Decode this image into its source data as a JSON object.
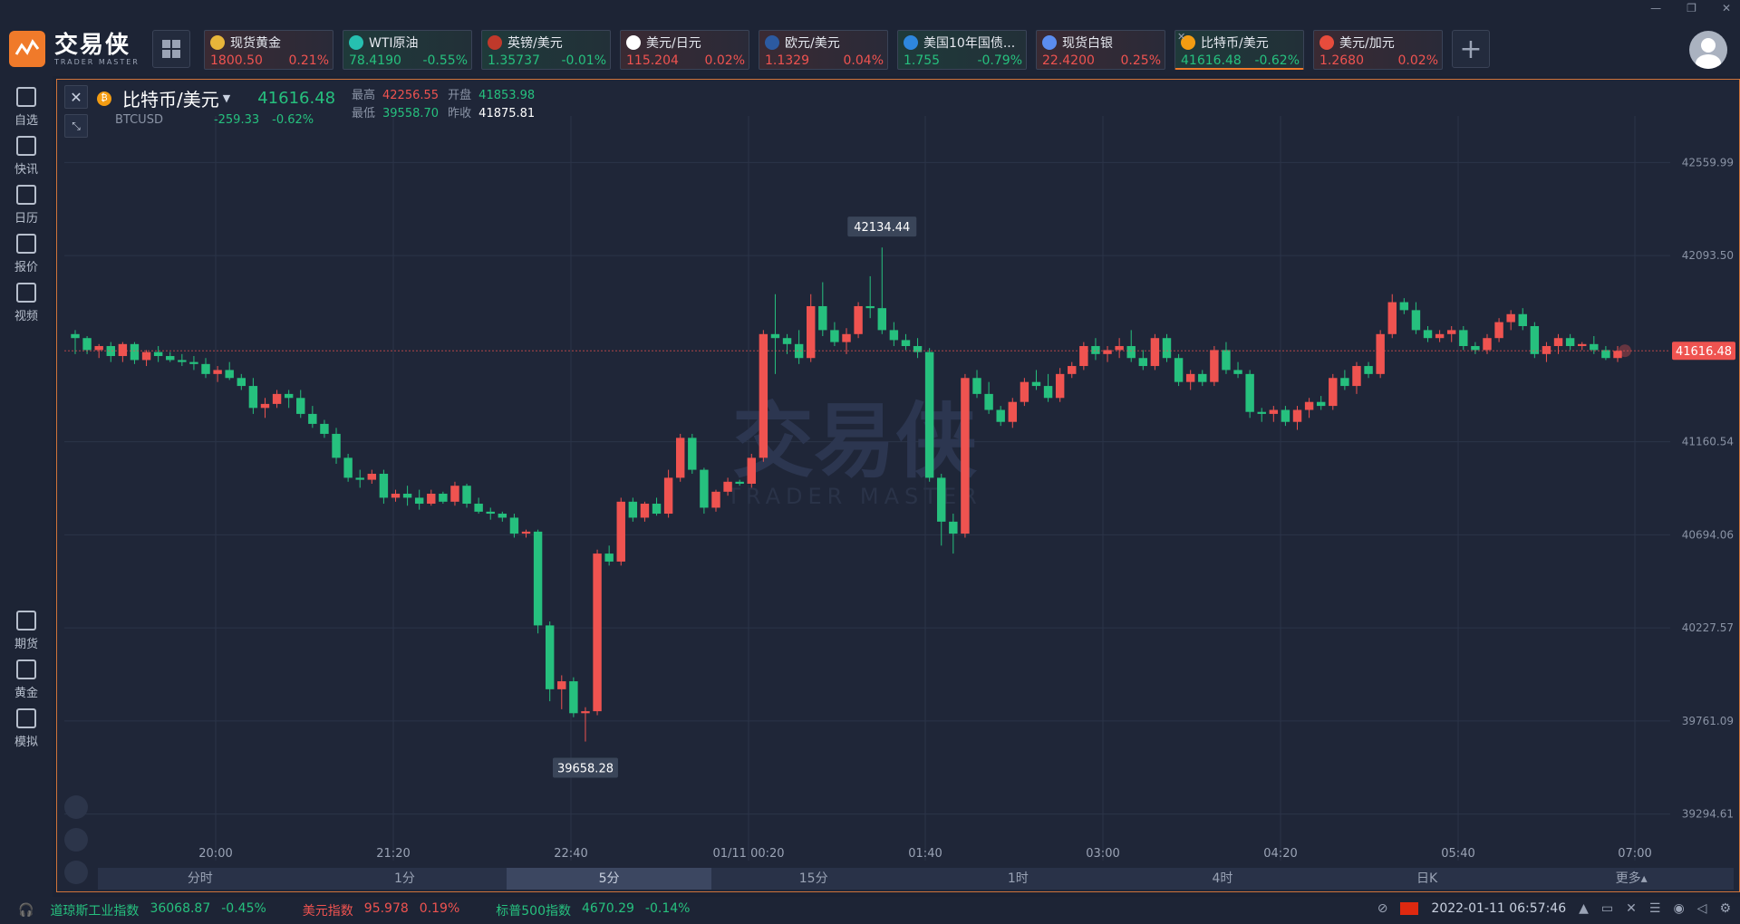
{
  "app": {
    "logo_cn": "交易侠",
    "logo_en": "TRADER MASTER"
  },
  "tabs": [
    {
      "name": "现货黄金",
      "price": "1800.50",
      "change": "0.21%",
      "dir": "up",
      "icon_color": "#e8b53a"
    },
    {
      "name": "WTI原油",
      "price": "78.4190",
      "change": "-0.55%",
      "dir": "down",
      "icon_color": "#26c0b0"
    },
    {
      "name": "英镑/美元",
      "price": "1.35737",
      "change": "-0.01%",
      "dir": "down",
      "icon_color": "#c0392b"
    },
    {
      "name": "美元/日元",
      "price": "115.204",
      "change": "0.02%",
      "dir": "up",
      "icon_color": "#ffffff"
    },
    {
      "name": "欧元/美元",
      "price": "1.1329",
      "change": "0.04%",
      "dir": "up",
      "icon_color": "#2c5aa0"
    },
    {
      "name": "美国10年国债...",
      "price": "1.755",
      "change": "-0.79%",
      "dir": "down",
      "icon_color": "#2e86de"
    },
    {
      "name": "现货白银",
      "price": "22.4200",
      "change": "0.25%",
      "dir": "up",
      "icon_color": "#5b8def"
    },
    {
      "name": "比特币/美元",
      "price": "41616.48",
      "change": "-0.62%",
      "dir": "down",
      "icon_color": "#f39c12",
      "active": true
    },
    {
      "name": "美元/加元",
      "price": "1.2680",
      "change": "0.02%",
      "dir": "up",
      "icon_color": "#e74c3c"
    }
  ],
  "sidebar": [
    {
      "label": "自选",
      "icon": "bookmark-icon"
    },
    {
      "label": "快讯",
      "icon": "news-icon"
    },
    {
      "label": "日历",
      "icon": "calendar-icon"
    },
    {
      "label": "报价",
      "icon": "quote-icon"
    },
    {
      "label": "视频",
      "icon": "video-icon"
    },
    {
      "label": "期货",
      "icon": "futures-icon"
    },
    {
      "label": "黄金",
      "icon": "gold-icon"
    },
    {
      "label": "模拟",
      "icon": "wallet-icon"
    }
  ],
  "symbol": {
    "name": "比特币/美元",
    "code": "BTCUSD",
    "price": "41616.48",
    "change": "-259.33",
    "change_pct": "-0.62%",
    "high_label": "最高",
    "high": "42256.55",
    "open_label": "开盘",
    "open": "41853.98",
    "low_label": "最低",
    "low": "39558.70",
    "prev_label": "昨收",
    "prev": "41875.81"
  },
  "timeframes": [
    "分时",
    "1分",
    "5分",
    "15分",
    "1时",
    "4时",
    "日K",
    "更多▴"
  ],
  "active_timeframe": "5分",
  "chart_data": {
    "type": "candlestick",
    "y_ticks": [
      "42559.99",
      "42093.50",
      "41160.54",
      "40694.06",
      "40227.57",
      "39761.09",
      "39294.61"
    ],
    "x_ticks": [
      "20:00",
      "21:20",
      "22:40",
      "01/11 00:20",
      "01:40",
      "03:00",
      "04:20",
      "05:40",
      "07:00"
    ],
    "ylim": [
      39061.37,
      42793.24
    ],
    "current_price": "41616.48",
    "high_marker": "42134.44",
    "low_marker": "39658.28",
    "up_color": "#ef5350",
    "down_color": "#26c07e",
    "candles": [
      [
        41700,
        41720,
        41600,
        41680
      ],
      [
        41680,
        41690,
        41600,
        41620
      ],
      [
        41620,
        41650,
        41580,
        41640
      ],
      [
        41640,
        41660,
        41560,
        41590
      ],
      [
        41590,
        41660,
        41560,
        41650
      ],
      [
        41650,
        41660,
        41550,
        41570
      ],
      [
        41570,
        41620,
        41540,
        41610
      ],
      [
        41610,
        41640,
        41560,
        41590
      ],
      [
        41590,
        41610,
        41560,
        41570
      ],
      [
        41570,
        41600,
        41540,
        41560
      ],
      [
        41560,
        41590,
        41520,
        41550
      ],
      [
        41550,
        41580,
        41480,
        41500
      ],
      [
        41500,
        41540,
        41460,
        41520
      ],
      [
        41520,
        41560,
        41470,
        41480
      ],
      [
        41480,
        41500,
        41420,
        41440
      ],
      [
        41440,
        41480,
        41300,
        41330
      ],
      [
        41330,
        41380,
        41280,
        41350
      ],
      [
        41350,
        41420,
        41330,
        41400
      ],
      [
        41400,
        41420,
        41330,
        41380
      ],
      [
        41380,
        41420,
        41280,
        41300
      ],
      [
        41300,
        41340,
        41230,
        41250
      ],
      [
        41250,
        41270,
        41180,
        41200
      ],
      [
        41200,
        41230,
        41050,
        41080
      ],
      [
        41080,
        41100,
        40960,
        40980
      ],
      [
        40980,
        41020,
        40930,
        40970
      ],
      [
        40970,
        41020,
        40950,
        41000
      ],
      [
        41000,
        41020,
        40850,
        40880
      ],
      [
        40880,
        40920,
        40860,
        40900
      ],
      [
        40900,
        40940,
        40840,
        40880
      ],
      [
        40880,
        40920,
        40820,
        40850
      ],
      [
        40850,
        40920,
        40840,
        40900
      ],
      [
        40900,
        40910,
        40850,
        40860
      ],
      [
        40860,
        40960,
        40840,
        40940
      ],
      [
        40940,
        40950,
        40830,
        40850
      ],
      [
        40850,
        40880,
        40800,
        40810
      ],
      [
        40810,
        40830,
        40770,
        40800
      ],
      [
        40800,
        40810,
        40760,
        40780
      ],
      [
        40780,
        40800,
        40680,
        40700
      ],
      [
        40700,
        40720,
        40680,
        40710
      ],
      [
        40710,
        40720,
        40200,
        40240
      ],
      [
        40240,
        40260,
        39860,
        39920
      ],
      [
        39920,
        39990,
        39820,
        39960
      ],
      [
        39960,
        39980,
        39780,
        39800
      ],
      [
        39800,
        39830,
        39658,
        39810
      ],
      [
        39810,
        40620,
        39790,
        40600
      ],
      [
        40600,
        40640,
        40540,
        40560
      ],
      [
        40560,
        40880,
        40540,
        40860
      ],
      [
        40860,
        40880,
        40760,
        40780
      ],
      [
        40780,
        40860,
        40760,
        40850
      ],
      [
        40850,
        40880,
        40790,
        40800
      ],
      [
        40800,
        41020,
        40780,
        40980
      ],
      [
        40980,
        41200,
        40960,
        41180
      ],
      [
        41180,
        41200,
        41000,
        41020
      ],
      [
        41020,
        41030,
        40800,
        40830
      ],
      [
        40830,
        40920,
        40810,
        40910
      ],
      [
        40910,
        40980,
        40890,
        40960
      ],
      [
        40960,
        40970,
        40940,
        40950
      ],
      [
        40950,
        41100,
        40930,
        41080
      ],
      [
        41080,
        41720,
        41060,
        41700
      ],
      [
        41700,
        41900,
        41500,
        41680
      ],
      [
        41680,
        41700,
        41600,
        41650
      ],
      [
        41650,
        41720,
        41550,
        41580
      ],
      [
        41580,
        41900,
        41560,
        41840
      ],
      [
        41840,
        41960,
        41690,
        41720
      ],
      [
        41720,
        41760,
        41640,
        41660
      ],
      [
        41660,
        41730,
        41600,
        41700
      ],
      [
        41700,
        41860,
        41680,
        41840
      ],
      [
        41840,
        41990,
        41780,
        41830
      ],
      [
        41830,
        42134,
        41700,
        41720
      ],
      [
        41720,
        41760,
        41640,
        41670
      ],
      [
        41670,
        41700,
        41620,
        41640
      ],
      [
        41640,
        41680,
        41580,
        41610
      ],
      [
        41610,
        41630,
        40960,
        40980
      ],
      [
        40980,
        41000,
        40640,
        40760
      ],
      [
        40760,
        40800,
        40600,
        40700
      ],
      [
        40700,
        41500,
        40680,
        41480
      ],
      [
        41480,
        41520,
        41380,
        41400
      ],
      [
        41400,
        41460,
        41300,
        41320
      ],
      [
        41320,
        41340,
        41240,
        41260
      ],
      [
        41260,
        41380,
        41230,
        41360
      ],
      [
        41360,
        41480,
        41340,
        41460
      ],
      [
        41460,
        41520,
        41420,
        41440
      ],
      [
        41440,
        41500,
        41360,
        41380
      ],
      [
        41380,
        41530,
        41360,
        41500
      ],
      [
        41500,
        41560,
        41480,
        41540
      ],
      [
        41540,
        41660,
        41520,
        41640
      ],
      [
        41640,
        41680,
        41570,
        41600
      ],
      [
        41600,
        41640,
        41560,
        41620
      ],
      [
        41620,
        41680,
        41580,
        41640
      ],
      [
        41640,
        41720,
        41560,
        41580
      ],
      [
        41580,
        41620,
        41520,
        41540
      ],
      [
        41540,
        41700,
        41520,
        41680
      ],
      [
        41680,
        41700,
        41560,
        41580
      ],
      [
        41580,
        41600,
        41440,
        41460
      ],
      [
        41460,
        41520,
        41420,
        41500
      ],
      [
        41500,
        41520,
        41440,
        41460
      ],
      [
        41460,
        41640,
        41440,
        41620
      ],
      [
        41620,
        41660,
        41500,
        41520
      ],
      [
        41520,
        41560,
        41480,
        41500
      ],
      [
        41500,
        41520,
        41280,
        41310
      ],
      [
        41310,
        41330,
        41260,
        41300
      ],
      [
        41300,
        41340,
        41260,
        41320
      ],
      [
        41320,
        41340,
        41240,
        41260
      ],
      [
        41260,
        41340,
        41220,
        41320
      ],
      [
        41320,
        41380,
        41280,
        41360
      ],
      [
        41360,
        41390,
        41320,
        41340
      ],
      [
        41340,
        41500,
        41320,
        41480
      ],
      [
        41480,
        41520,
        41420,
        41440
      ],
      [
        41440,
        41560,
        41400,
        41540
      ],
      [
        41540,
        41560,
        41480,
        41500
      ],
      [
        41500,
        41720,
        41480,
        41700
      ],
      [
        41700,
        41900,
        41680,
        41860
      ],
      [
        41860,
        41880,
        41800,
        41820
      ],
      [
        41820,
        41860,
        41700,
        41720
      ],
      [
        41720,
        41740,
        41660,
        41680
      ],
      [
        41680,
        41720,
        41660,
        41700
      ],
      [
        41700,
        41740,
        41660,
        41720
      ],
      [
        41720,
        41740,
        41620,
        41640
      ],
      [
        41640,
        41660,
        41600,
        41620
      ],
      [
        41620,
        41700,
        41600,
        41680
      ],
      [
        41680,
        41780,
        41660,
        41760
      ],
      [
        41760,
        41820,
        41720,
        41800
      ],
      [
        41800,
        41830,
        41720,
        41740
      ],
      [
        41740,
        41760,
        41580,
        41600
      ],
      [
        41600,
        41660,
        41560,
        41640
      ],
      [
        41640,
        41700,
        41600,
        41680
      ],
      [
        41680,
        41700,
        41620,
        41640
      ],
      [
        41640,
        41660,
        41620,
        41650
      ],
      [
        41650,
        41690,
        41600,
        41620
      ],
      [
        41620,
        41640,
        41570,
        41580
      ],
      [
        41580,
        41640,
        41560,
        41616
      ]
    ]
  },
  "bottom": {
    "indices": [
      {
        "name": "道琼斯工业指数",
        "value": "36068.87",
        "change": "-0.45%",
        "dir": "down"
      },
      {
        "name": "美元指数",
        "value": "95.978",
        "change": "0.19%",
        "dir": "up"
      },
      {
        "name": "标普500指数",
        "value": "4670.29",
        "change": "-0.14%",
        "dir": "down"
      }
    ],
    "datetime": "2022-01-11 06:57:46"
  }
}
